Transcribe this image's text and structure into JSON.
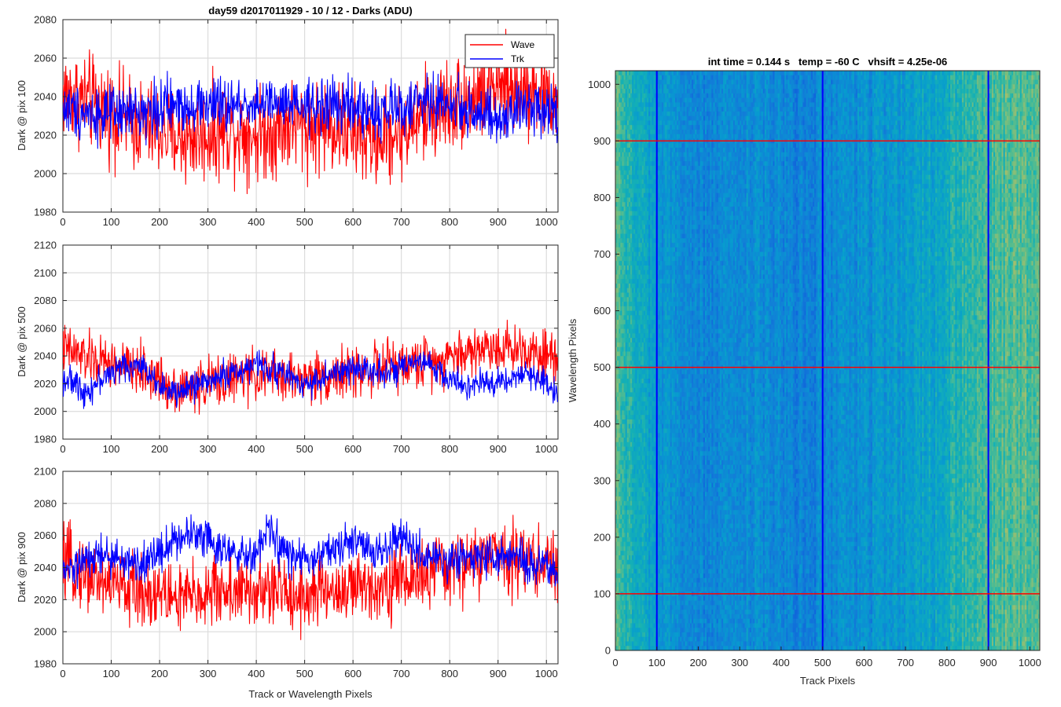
{
  "chart_data": [
    {
      "type": "line",
      "title": "day59 d2017011929 - 10 / 12 - Darks (ADU)",
      "xlabel": "",
      "ylabel": "Dark @ pix 100",
      "xlim": [
        0,
        1024
      ],
      "ylim": [
        1980,
        2080
      ],
      "xticks": [
        0,
        100,
        200,
        300,
        400,
        500,
        600,
        700,
        800,
        900,
        1000
      ],
      "yticks": [
        1980,
        2000,
        2020,
        2040,
        2060,
        2080
      ],
      "grid": true,
      "legend": {
        "position": "top-right",
        "entries": [
          "Wave",
          "Trk"
        ]
      },
      "x": [
        0,
        25,
        50,
        75,
        100,
        125,
        150,
        175,
        200,
        225,
        250,
        275,
        300,
        325,
        350,
        375,
        400,
        425,
        450,
        475,
        500,
        525,
        550,
        575,
        600,
        625,
        650,
        675,
        700,
        725,
        750,
        775,
        800,
        825,
        850,
        875,
        900,
        925,
        950,
        975,
        1000,
        1023
      ],
      "series": [
        {
          "name": "Wave",
          "color": "#ff0000",
          "noise": 12,
          "values": [
            2042,
            2040,
            2038,
            2035,
            2032,
            2028,
            2026,
            2024,
            2022,
            2020,
            2018,
            2019,
            2020,
            2022,
            2023,
            2022,
            2020,
            2022,
            2024,
            2026,
            2025,
            2024,
            2025,
            2024,
            2020,
            2018,
            2018,
            2020,
            2022,
            2026,
            2030,
            2033,
            2036,
            2038,
            2040,
            2042,
            2044,
            2044,
            2046,
            2044,
            2040,
            2036
          ]
        },
        {
          "name": "Trk",
          "color": "#0000ff",
          "noise": 7,
          "values": [
            2034,
            2033,
            2032,
            2031,
            2030,
            2031,
            2032,
            2033,
            2034,
            2035,
            2036,
            2036,
            2036,
            2035,
            2035,
            2036,
            2037,
            2036,
            2035,
            2034,
            2034,
            2035,
            2036,
            2035,
            2034,
            2033,
            2032,
            2033,
            2034,
            2036,
            2038,
            2037,
            2036,
            2035,
            2032,
            2030,
            2025,
            2030,
            2034,
            2036,
            2035,
            2032
          ]
        }
      ]
    },
    {
      "type": "line",
      "title": "",
      "xlabel": "",
      "ylabel": "Dark @ pix 500",
      "xlim": [
        0,
        1024
      ],
      "ylim": [
        1980,
        2120
      ],
      "xticks": [
        0,
        100,
        200,
        300,
        400,
        500,
        600,
        700,
        800,
        900,
        1000
      ],
      "yticks": [
        1980,
        2000,
        2020,
        2040,
        2060,
        2080,
        2100,
        2120
      ],
      "grid": true,
      "x": [
        0,
        25,
        50,
        75,
        100,
        125,
        150,
        175,
        200,
        225,
        250,
        275,
        300,
        325,
        350,
        375,
        400,
        425,
        450,
        475,
        500,
        525,
        550,
        575,
        600,
        625,
        650,
        675,
        700,
        725,
        750,
        775,
        800,
        825,
        850,
        875,
        900,
        925,
        950,
        975,
        1000,
        1023
      ],
      "series": [
        {
          "name": "Wave",
          "color": "#ff0000",
          "noise": 9,
          "values": [
            2045,
            2042,
            2038,
            2036,
            2034,
            2032,
            2030,
            2028,
            2022,
            2018,
            2016,
            2018,
            2020,
            2022,
            2024,
            2025,
            2026,
            2026,
            2025,
            2024,
            2024,
            2025,
            2026,
            2027,
            2028,
            2030,
            2031,
            2032,
            2033,
            2034,
            2036,
            2038,
            2040,
            2042,
            2044,
            2046,
            2047,
            2046,
            2045,
            2044,
            2042,
            2040
          ]
        },
        {
          "name": "Trk",
          "color": "#0000ff",
          "noise": 5,
          "values": [
            2024,
            2020,
            2014,
            2022,
            2028,
            2032,
            2033,
            2030,
            2020,
            2012,
            2015,
            2020,
            2022,
            2025,
            2028,
            2030,
            2034,
            2032,
            2028,
            2024,
            2020,
            2022,
            2026,
            2028,
            2030,
            2032,
            2030,
            2028,
            2030,
            2034,
            2035,
            2030,
            2022,
            2020,
            2018,
            2020,
            2022,
            2024,
            2026,
            2025,
            2022,
            2012
          ]
        }
      ]
    },
    {
      "type": "line",
      "title": "",
      "xlabel": "Track or Wavelength Pixels",
      "ylabel": "Dark @ pix 900",
      "xlim": [
        0,
        1024
      ],
      "ylim": [
        1980,
        2100
      ],
      "xticks": [
        0,
        100,
        200,
        300,
        400,
        500,
        600,
        700,
        800,
        900,
        1000
      ],
      "yticks": [
        1980,
        2000,
        2020,
        2040,
        2060,
        2080,
        2100
      ],
      "grid": true,
      "x": [
        0,
        25,
        50,
        75,
        100,
        125,
        150,
        175,
        200,
        225,
        250,
        275,
        300,
        325,
        350,
        375,
        400,
        425,
        450,
        475,
        500,
        525,
        550,
        575,
        600,
        625,
        650,
        675,
        700,
        725,
        750,
        775,
        800,
        825,
        850,
        875,
        900,
        925,
        950,
        975,
        1000,
        1023
      ],
      "series": [
        {
          "name": "Wave",
          "color": "#ff0000",
          "noise": 11,
          "values": [
            2042,
            2040,
            2036,
            2032,
            2030,
            2028,
            2026,
            2025,
            2024,
            2022,
            2020,
            2022,
            2024,
            2026,
            2026,
            2024,
            2024,
            2025,
            2026,
            2024,
            2022,
            2024,
            2026,
            2026,
            2026,
            2028,
            2030,
            2030,
            2032,
            2034,
            2036,
            2038,
            2040,
            2042,
            2044,
            2046,
            2048,
            2048,
            2046,
            2044,
            2042,
            2040
          ]
        },
        {
          "name": "Trk",
          "color": "#0000ff",
          "noise": 6,
          "values": [
            2036,
            2040,
            2044,
            2048,
            2046,
            2044,
            2042,
            2044,
            2050,
            2056,
            2060,
            2062,
            2060,
            2052,
            2048,
            2046,
            2048,
            2064,
            2052,
            2046,
            2044,
            2046,
            2050,
            2052,
            2056,
            2054,
            2050,
            2052,
            2060,
            2052,
            2046,
            2044,
            2044,
            2046,
            2048,
            2048,
            2046,
            2046,
            2044,
            2042,
            2040,
            2036
          ]
        }
      ]
    },
    {
      "type": "heatmap",
      "title": "int time = 0.144 s   temp = -60 C   vhsift = 4.25e-06",
      "xlabel": "Track Pixels",
      "ylabel": "Wavelength Pixels",
      "xlim": [
        0,
        1024
      ],
      "ylim": [
        0,
        1024
      ],
      "xticks": [
        0,
        100,
        200,
        300,
        400,
        500,
        600,
        700,
        800,
        900,
        1000
      ],
      "yticks": [
        0,
        100,
        200,
        300,
        400,
        500,
        600,
        700,
        800,
        900,
        1000
      ],
      "grid": false,
      "column_profile": {
        "x": [
          0,
          50,
          100,
          150,
          200,
          250,
          300,
          350,
          400,
          450,
          500,
          550,
          600,
          650,
          700,
          750,
          800,
          850,
          900,
          950,
          1000,
          1023
        ],
        "level": [
          0.72,
          0.55,
          0.42,
          0.38,
          0.34,
          0.36,
          0.4,
          0.38,
          0.34,
          0.32,
          0.34,
          0.36,
          0.38,
          0.42,
          0.46,
          0.5,
          0.56,
          0.62,
          0.66,
          0.7,
          0.72,
          0.72
        ]
      },
      "overlay_vertical": {
        "color": "#0000ff",
        "x": [
          100,
          500,
          900
        ]
      },
      "overlay_horizontal": {
        "color": "#ff0000",
        "y": [
          100,
          500,
          900
        ]
      }
    }
  ]
}
